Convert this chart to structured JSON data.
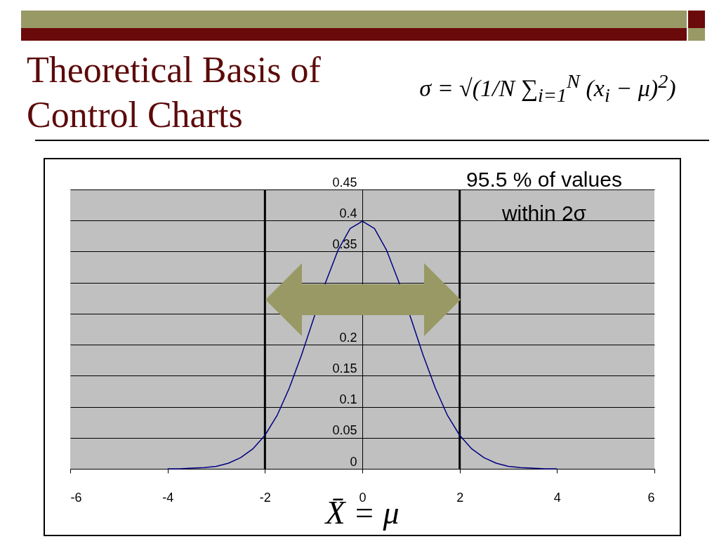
{
  "chart_data": {
    "type": "line",
    "title": "Theoretical Basis of Control Charts",
    "x": [
      -4,
      -3.75,
      -3.5,
      -3.25,
      -3,
      -2.75,
      -2.5,
      -2.25,
      -2,
      -1.75,
      -1.5,
      -1.25,
      -1,
      -0.75,
      -0.5,
      -0.25,
      0,
      0.25,
      0.5,
      0.75,
      1,
      1.25,
      1.5,
      1.75,
      2,
      2.25,
      2.5,
      2.75,
      3,
      3.25,
      3.5,
      3.75,
      4
    ],
    "series": [
      {
        "color": "#000080",
        "values": [
          0,
          0,
          0.001,
          0.002,
          0.004,
          0.009,
          0.018,
          0.032,
          0.054,
          0.086,
          0.13,
          0.183,
          0.242,
          0.301,
          0.352,
          0.387,
          0.399,
          0.387,
          0.352,
          0.301,
          0.242,
          0.183,
          0.13,
          0.086,
          0.054,
          0.032,
          0.018,
          0.009,
          0.004,
          0.002,
          0.001,
          0,
          0
        ]
      }
    ],
    "xlim": [
      -6,
      6
    ],
    "xticks": [
      -6,
      -4,
      -2,
      0,
      2,
      4,
      6
    ],
    "ylim": [
      0,
      0.45
    ],
    "yticks": [
      0,
      0.05,
      0.1,
      0.15,
      0.2,
      {
        "value": 0.25,
        "label": null
      },
      {
        "value": 0.3,
        "label": null
      },
      0.35,
      0.4,
      0.45
    ],
    "grid": "y",
    "marker": "none",
    "line_style": "solid",
    "ref_lines": [
      {
        "axis": "x",
        "value": -2,
        "color": "#000000"
      },
      {
        "axis": "x",
        "value": 2,
        "color": "#000000"
      }
    ],
    "annotations": [
      "σ = √(1/N ∑$_{i=1}$$^{N}$ (x$_{i}$ − μ)$^{2}$)",
      "95.5 % of values within 2σ",
      "X̄ = μ"
    ]
  }
}
